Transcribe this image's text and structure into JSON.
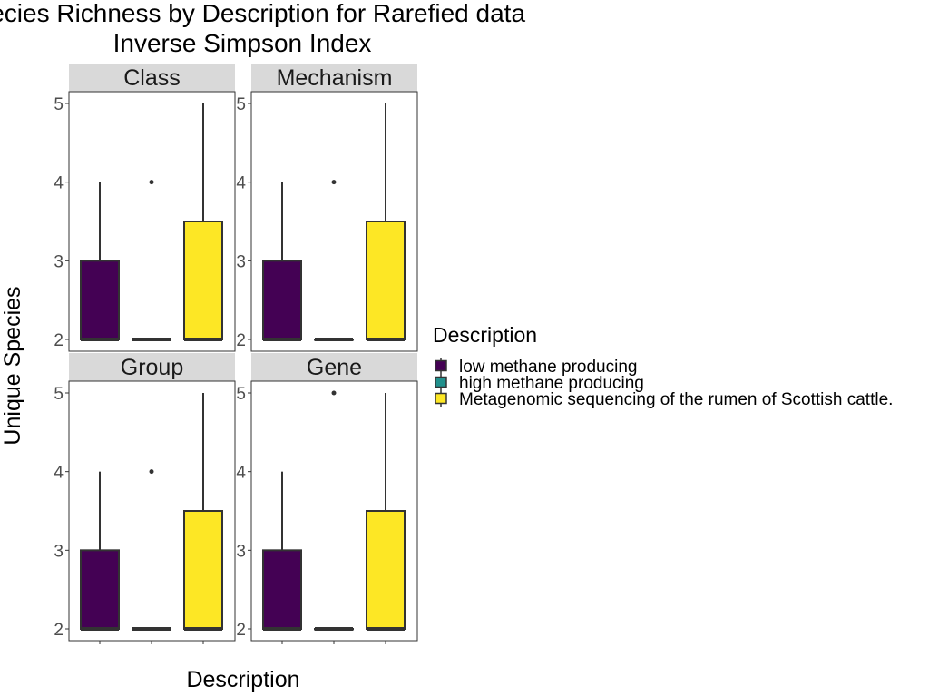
{
  "chart_data": {
    "type": "box",
    "title_line1": "Species Richness by Description for Rarefied data",
    "title_line2": "Inverse Simpson Index",
    "ylabel": "Unique Species",
    "xlabel": "Description",
    "ylim": [
      1.85,
      5.15
    ],
    "yticks": [
      2,
      3,
      4,
      5
    ],
    "grid": false,
    "legend": {
      "title": "Description",
      "position": "right",
      "entries": [
        {
          "label": "low methane producing",
          "color": "#440154"
        },
        {
          "label": "high methane producing",
          "color": "#21908C"
        },
        {
          "label": "Metagenomic sequencing of the rumen of Scottish cattle.",
          "color": "#FDE725"
        }
      ]
    },
    "panels": [
      {
        "name": "Class",
        "boxes": [
          {
            "group": "low methane producing",
            "color": "#440154",
            "min": 2,
            "q1": 2,
            "median": 2,
            "q3": 3,
            "max": 4,
            "outliers": []
          },
          {
            "group": "high methane producing",
            "color": "#21908C",
            "min": 2,
            "q1": 2,
            "median": 2,
            "q3": 2,
            "max": 2,
            "outliers": [
              4
            ]
          },
          {
            "group": "Metagenomic sequencing of the rumen of Scottish cattle.",
            "color": "#FDE725",
            "min": 2,
            "q1": 2,
            "median": 2,
            "q3": 3.5,
            "max": 5,
            "outliers": []
          }
        ]
      },
      {
        "name": "Mechanism",
        "boxes": [
          {
            "group": "low methane producing",
            "color": "#440154",
            "min": 2,
            "q1": 2,
            "median": 2,
            "q3": 3,
            "max": 4,
            "outliers": []
          },
          {
            "group": "high methane producing",
            "color": "#21908C",
            "min": 2,
            "q1": 2,
            "median": 2,
            "q3": 2,
            "max": 2,
            "outliers": [
              4
            ]
          },
          {
            "group": "Metagenomic sequencing of the rumen of Scottish cattle.",
            "color": "#FDE725",
            "min": 2,
            "q1": 2,
            "median": 2,
            "q3": 3.5,
            "max": 5,
            "outliers": []
          }
        ]
      },
      {
        "name": "Group",
        "boxes": [
          {
            "group": "low methane producing",
            "color": "#440154",
            "min": 2,
            "q1": 2,
            "median": 2,
            "q3": 3,
            "max": 4,
            "outliers": []
          },
          {
            "group": "high methane producing",
            "color": "#21908C",
            "min": 2,
            "q1": 2,
            "median": 2,
            "q3": 2,
            "max": 2,
            "outliers": [
              4
            ]
          },
          {
            "group": "Metagenomic sequencing of the rumen of Scottish cattle.",
            "color": "#FDE725",
            "min": 2,
            "q1": 2,
            "median": 2,
            "q3": 3.5,
            "max": 5,
            "outliers": []
          }
        ]
      },
      {
        "name": "Gene",
        "boxes": [
          {
            "group": "low methane producing",
            "color": "#440154",
            "min": 2,
            "q1": 2,
            "median": 2,
            "q3": 3,
            "max": 4,
            "outliers": []
          },
          {
            "group": "high methane producing",
            "color": "#21908C",
            "min": 2,
            "q1": 2,
            "median": 2,
            "q3": 2,
            "max": 2,
            "outliers": [
              5
            ]
          },
          {
            "group": "Metagenomic sequencing of the rumen of Scottish cattle.",
            "color": "#FDE725",
            "min": 2,
            "q1": 2,
            "median": 2,
            "q3": 3.5,
            "max": 5,
            "outliers": []
          }
        ]
      }
    ]
  }
}
